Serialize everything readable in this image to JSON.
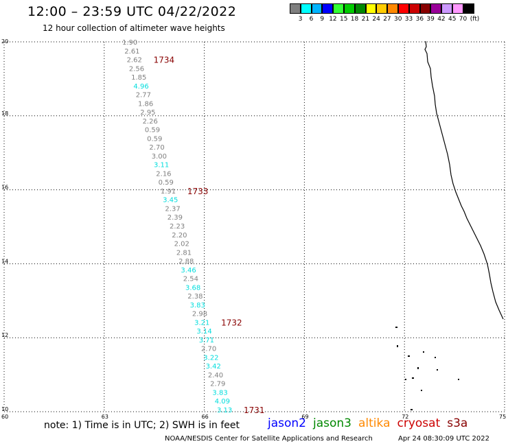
{
  "header": {
    "title": "12:00 – 23:59 UTC 04/22/2022",
    "subtitle": "12 hour collection of altimeter wave heights"
  },
  "scale": {
    "unit": "(ft)",
    "colors": [
      "#7f7f7f",
      "#00ffff",
      "#00b4ff",
      "#0000ff",
      "#33ff33",
      "#00cc00",
      "#008800",
      "#ffff00",
      "#ffcc00",
      "#ff8800",
      "#ff0000",
      "#cc0000",
      "#880000",
      "#990099",
      "#cc99ff",
      "#ff99ff",
      "#000000"
    ],
    "labels": [
      "3",
      "6",
      "9",
      "12",
      "15",
      "18",
      "21",
      "24",
      "27",
      "30",
      "33",
      "36",
      "39",
      "42",
      "45",
      "70"
    ]
  },
  "map": {
    "lat_ticks": [
      "20",
      "18",
      "16",
      "14",
      "12",
      "10"
    ],
    "lon_ticks": [
      "60",
      "63",
      "66",
      "69",
      "72",
      "75"
    ],
    "lat_range": [
      10,
      20
    ],
    "lon_range": [
      60,
      75
    ],
    "grid": "dotted",
    "coastline": "india-west-coast"
  },
  "track": {
    "points": [
      {
        "v": "1.90",
        "c": "gray"
      },
      {
        "v": "2.61",
        "c": "gray"
      },
      {
        "v": "2.62",
        "c": "gray"
      },
      {
        "v": "2.56",
        "c": "gray"
      },
      {
        "v": "1.85",
        "c": "gray"
      },
      {
        "v": "4.96",
        "c": "cyan"
      },
      {
        "v": "2.77",
        "c": "gray"
      },
      {
        "v": "1.86",
        "c": "gray"
      },
      {
        "v": "2.95",
        "c": "gray"
      },
      {
        "v": "2.26",
        "c": "gray"
      },
      {
        "v": "0.59",
        "c": "gray"
      },
      {
        "v": "0.59",
        "c": "gray"
      },
      {
        "v": "2.70",
        "c": "gray"
      },
      {
        "v": "3.00",
        "c": "gray"
      },
      {
        "v": "3.11",
        "c": "cyan"
      },
      {
        "v": "2.16",
        "c": "gray"
      },
      {
        "v": "0.59",
        "c": "gray"
      },
      {
        "v": "1.91",
        "c": "gray"
      },
      {
        "v": "3.45",
        "c": "cyan"
      },
      {
        "v": "2.37",
        "c": "gray"
      },
      {
        "v": "2.39",
        "c": "gray"
      },
      {
        "v": "2.23",
        "c": "gray"
      },
      {
        "v": "2.20",
        "c": "gray"
      },
      {
        "v": "2.02",
        "c": "gray"
      },
      {
        "v": "2.81",
        "c": "gray"
      },
      {
        "v": "2.88",
        "c": "gray"
      },
      {
        "v": "3.46",
        "c": "cyan"
      },
      {
        "v": "2.54",
        "c": "gray"
      },
      {
        "v": "3.68",
        "c": "cyan"
      },
      {
        "v": "2.38",
        "c": "gray"
      },
      {
        "v": "3.83",
        "c": "cyan"
      },
      {
        "v": "2.98",
        "c": "gray"
      },
      {
        "v": "3.21",
        "c": "cyan"
      },
      {
        "v": "3.14",
        "c": "cyan"
      },
      {
        "v": "3.71",
        "c": "cyan"
      },
      {
        "v": "2.70",
        "c": "gray"
      },
      {
        "v": "3.22",
        "c": "cyan"
      },
      {
        "v": "3.42",
        "c": "cyan"
      },
      {
        "v": "2.40",
        "c": "gray"
      },
      {
        "v": "2.79",
        "c": "gray"
      },
      {
        "v": "3.83",
        "c": "cyan"
      },
      {
        "v": "4.09",
        "c": "cyan"
      },
      {
        "v": "3.13",
        "c": "cyan"
      }
    ],
    "time_labels": [
      {
        "text": "1734",
        "at": 2
      },
      {
        "text": "1733",
        "at": 17
      },
      {
        "text": "1732",
        "at": 32
      },
      {
        "text": "1731",
        "at": 42
      }
    ],
    "colors": {
      "gray": "#7f7f7f",
      "cyan": "#00dddd",
      "time": "#880000"
    }
  },
  "footer": {
    "note": "note: 1) Time is in UTC; 2) SWH is in feet",
    "satellites": [
      {
        "name": "jason2",
        "color": "#0000ff"
      },
      {
        "name": "jason3",
        "color": "#008800"
      },
      {
        "name": "altika",
        "color": "#ff8800"
      },
      {
        "name": "cryosat",
        "color": "#cc0000"
      },
      {
        "name": "s3a",
        "color": "#880000"
      }
    ],
    "credit": "NOAA/NESDIS Center for Satellite Applications and Research",
    "timestamp": "Apr 24 08:30:09 UTC 2022"
  }
}
